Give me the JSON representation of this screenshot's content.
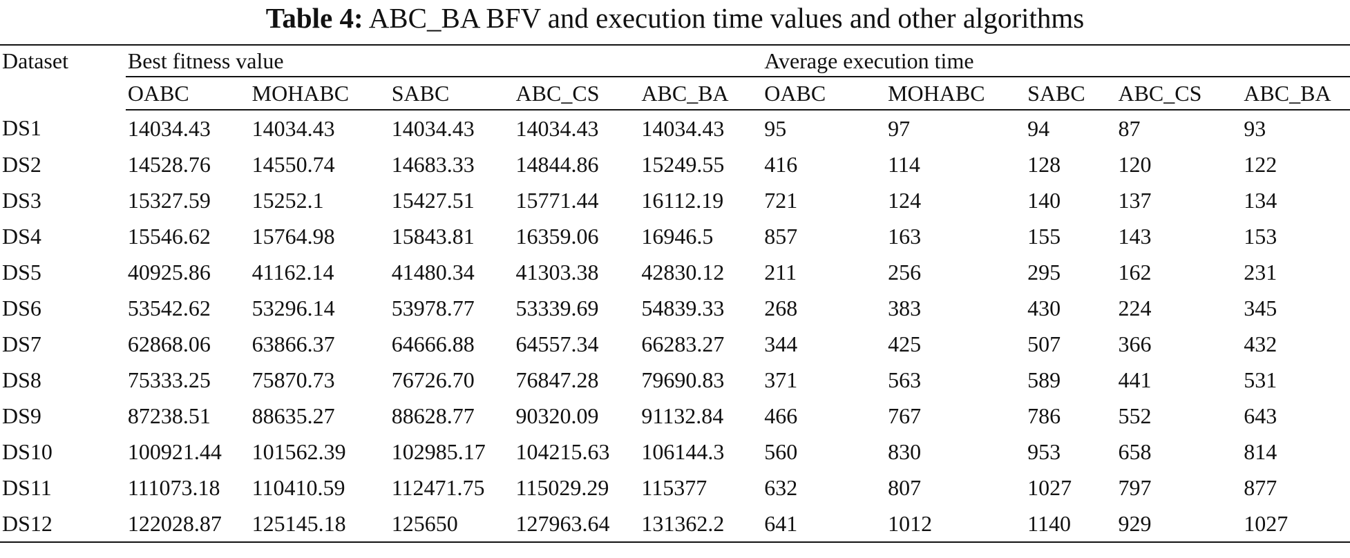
{
  "caption": {
    "label": "Table 4:",
    "text": "ABC_BA BFV and execution time values and other algorithms"
  },
  "table": {
    "row_header": "Dataset",
    "groups": [
      "Best fitness value",
      "Average execution time"
    ],
    "columns": [
      "OABC",
      "MOHABC",
      "SABC",
      "ABC_CS",
      "ABC_BA",
      "OABC",
      "MOHABC",
      "SABC",
      "ABC_CS",
      "ABC_BA"
    ],
    "rows": [
      {
        "dataset": "DS1",
        "cells": [
          {
            "v": "14034.43",
            "b": true
          },
          {
            "v": "14034.43",
            "b": true
          },
          {
            "v": "14034.43",
            "b": true
          },
          {
            "v": "14034.43",
            "b": true
          },
          {
            "v": "14034.43",
            "b": true
          },
          {
            "v": "95",
            "b": false
          },
          {
            "v": "97",
            "b": false
          },
          {
            "v": "94",
            "b": false
          },
          {
            "v": "87",
            "b": true
          },
          {
            "v": "93",
            "b": false
          }
        ]
      },
      {
        "dataset": "DS2",
        "cells": [
          {
            "v": "14528.76",
            "b": false
          },
          {
            "v": "14550.74",
            "b": false
          },
          {
            "v": "14683.33",
            "b": false
          },
          {
            "v": "14844.86",
            "b": false
          },
          {
            "v": "15249.55",
            "b": true
          },
          {
            "v": "416",
            "b": false
          },
          {
            "v": "114",
            "b": true
          },
          {
            "v": "128",
            "b": false
          },
          {
            "v": "120",
            "b": false
          },
          {
            "v": "122",
            "b": false
          }
        ]
      },
      {
        "dataset": "DS3",
        "cells": [
          {
            "v": "15327.59",
            "b": false
          },
          {
            "v": "15252.1",
            "b": false
          },
          {
            "v": "15427.51",
            "b": false
          },
          {
            "v": "15771.44",
            "b": false
          },
          {
            "v": "16112.19",
            "b": true
          },
          {
            "v": "721",
            "b": false
          },
          {
            "v": "124",
            "b": true
          },
          {
            "v": "140",
            "b": false
          },
          {
            "v": "137",
            "b": false
          },
          {
            "v": "134",
            "b": false
          }
        ]
      },
      {
        "dataset": "DS4",
        "cells": [
          {
            "v": "15546.62",
            "b": false
          },
          {
            "v": "15764.98",
            "b": false
          },
          {
            "v": "15843.81",
            "b": false
          },
          {
            "v": "16359.06",
            "b": false
          },
          {
            "v": "16946.5",
            "b": true
          },
          {
            "v": "857",
            "b": false
          },
          {
            "v": "163",
            "b": false
          },
          {
            "v": "155",
            "b": false
          },
          {
            "v": "143",
            "b": true
          },
          {
            "v": "153",
            "b": false
          }
        ]
      },
      {
        "dataset": "DS5",
        "cells": [
          {
            "v": "40925.86",
            "b": false
          },
          {
            "v": "41162.14",
            "b": false
          },
          {
            "v": "41480.34",
            "b": false
          },
          {
            "v": "41303.38",
            "b": false
          },
          {
            "v": "42830.12",
            "b": true
          },
          {
            "v": "211",
            "b": false
          },
          {
            "v": "256",
            "b": false
          },
          {
            "v": "295",
            "b": false
          },
          {
            "v": "162",
            "b": true
          },
          {
            "v": "231",
            "b": false
          }
        ]
      },
      {
        "dataset": "DS6",
        "cells": [
          {
            "v": "53542.62",
            "b": false
          },
          {
            "v": "53296.14",
            "b": false
          },
          {
            "v": "53978.77",
            "b": false
          },
          {
            "v": "53339.69",
            "b": false
          },
          {
            "v": "54839.33",
            "b": true
          },
          {
            "v": "268",
            "b": false
          },
          {
            "v": "383",
            "b": false
          },
          {
            "v": "430",
            "b": false
          },
          {
            "v": "224",
            "b": true
          },
          {
            "v": "345",
            "b": false
          }
        ]
      },
      {
        "dataset": "DS7",
        "cells": [
          {
            "v": "62868.06",
            "b": false
          },
          {
            "v": "63866.37",
            "b": false
          },
          {
            "v": "64666.88",
            "b": false
          },
          {
            "v": "64557.34",
            "b": false
          },
          {
            "v": "66283.27",
            "b": true
          },
          {
            "v": "344",
            "b": true
          },
          {
            "v": "425",
            "b": false
          },
          {
            "v": "507",
            "b": false
          },
          {
            "v": "366",
            "b": false
          },
          {
            "v": "432",
            "b": false
          }
        ]
      },
      {
        "dataset": "DS8",
        "cells": [
          {
            "v": "75333.25",
            "b": false
          },
          {
            "v": "75870.73",
            "b": false
          },
          {
            "v": "76726.70",
            "b": false
          },
          {
            "v": "76847.28",
            "b": false
          },
          {
            "v": "79690.83",
            "b": true
          },
          {
            "v": "371",
            "b": true
          },
          {
            "v": "563",
            "b": false
          },
          {
            "v": "589",
            "b": false
          },
          {
            "v": "441",
            "b": false
          },
          {
            "v": "531",
            "b": false
          }
        ]
      },
      {
        "dataset": "DS9",
        "cells": [
          {
            "v": "87238.51",
            "b": false
          },
          {
            "v": "88635.27",
            "b": false
          },
          {
            "v": "88628.77",
            "b": false
          },
          {
            "v": "90320.09",
            "b": false
          },
          {
            "v": "91132.84",
            "b": true
          },
          {
            "v": "466",
            "b": true
          },
          {
            "v": "767",
            "b": false
          },
          {
            "v": "786",
            "b": false
          },
          {
            "v": "552",
            "b": false
          },
          {
            "v": "643",
            "b": false
          }
        ]
      },
      {
        "dataset": "DS10",
        "cells": [
          {
            "v": "100921.44",
            "b": false
          },
          {
            "v": "101562.39",
            "b": false
          },
          {
            "v": "102985.17",
            "b": false
          },
          {
            "v": "104215.63",
            "b": false
          },
          {
            "v": "106144.3",
            "b": true
          },
          {
            "v": "560",
            "b": true
          },
          {
            "v": "830",
            "b": false
          },
          {
            "v": "953",
            "b": false
          },
          {
            "v": "658",
            "b": false
          },
          {
            "v": "814",
            "b": false
          }
        ]
      },
      {
        "dataset": "DS11",
        "cells": [
          {
            "v": "111073.18",
            "b": false
          },
          {
            "v": "110410.59",
            "b": false
          },
          {
            "v": "112471.75",
            "b": false
          },
          {
            "v": "115029.29",
            "b": false
          },
          {
            "v": "115377",
            "b": true
          },
          {
            "v": "632",
            "b": true
          },
          {
            "v": "807",
            "b": false
          },
          {
            "v": "1027",
            "b": false
          },
          {
            "v": "797",
            "b": false
          },
          {
            "v": "877",
            "b": false
          }
        ]
      },
      {
        "dataset": "DS12",
        "cells": [
          {
            "v": "122028.87",
            "b": false
          },
          {
            "v": "125145.18",
            "b": false
          },
          {
            "v": "125650",
            "b": false
          },
          {
            "v": "127963.64",
            "b": false
          },
          {
            "v": "131362.2",
            "b": true
          },
          {
            "v": "641",
            "b": true
          },
          {
            "v": "1012",
            "b": false
          },
          {
            "v": "1140",
            "b": false
          },
          {
            "v": "929",
            "b": false
          },
          {
            "v": "1027",
            "b": false
          }
        ]
      }
    ]
  }
}
